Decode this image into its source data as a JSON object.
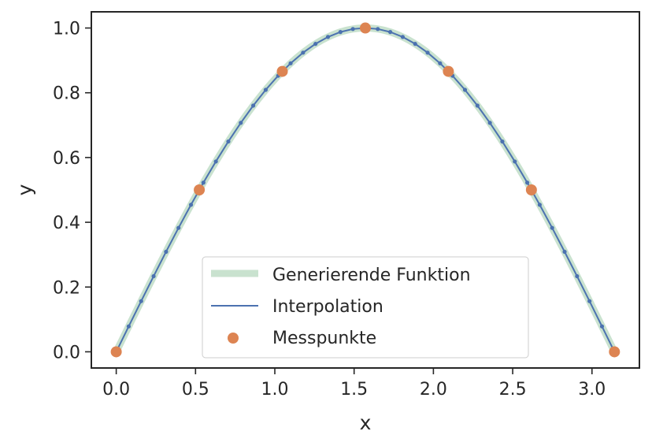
{
  "chart_data": {
    "type": "line",
    "title": "",
    "xlabel": "x",
    "ylabel": "y",
    "xlim": [
      -0.157,
      3.299
    ],
    "ylim": [
      -0.05,
      1.05
    ],
    "xticks": [
      "0.0",
      "0.5",
      "1.0",
      "1.5",
      "2.0",
      "2.5",
      "3.0"
    ],
    "yticks": [
      "0.0",
      "0.2",
      "0.4",
      "0.6",
      "0.8",
      "1.0"
    ],
    "grid": false,
    "legend_position": "lower center",
    "colors": {
      "generating": "#c9e2cf",
      "interpolation": "#4c72b0",
      "measurements": "#dd8452",
      "axes": "#262626"
    },
    "series": [
      {
        "name": "Generierende Funktion",
        "kind": "line",
        "function": "sin(x)",
        "x_range": [
          0,
          3.14159
        ]
      },
      {
        "name": "Interpolation",
        "kind": "line-with-markers",
        "function": "sin(x)",
        "x_range": [
          0,
          3.14159
        ],
        "n_points": 41
      },
      {
        "name": "Messpunkte",
        "kind": "scatter",
        "x": [
          0.0,
          0.5236,
          1.0472,
          1.5708,
          2.0944,
          2.618,
          3.1416
        ],
        "y": [
          0.0,
          0.5,
          0.866,
          1.0,
          0.866,
          0.5,
          0.0
        ]
      }
    ]
  }
}
